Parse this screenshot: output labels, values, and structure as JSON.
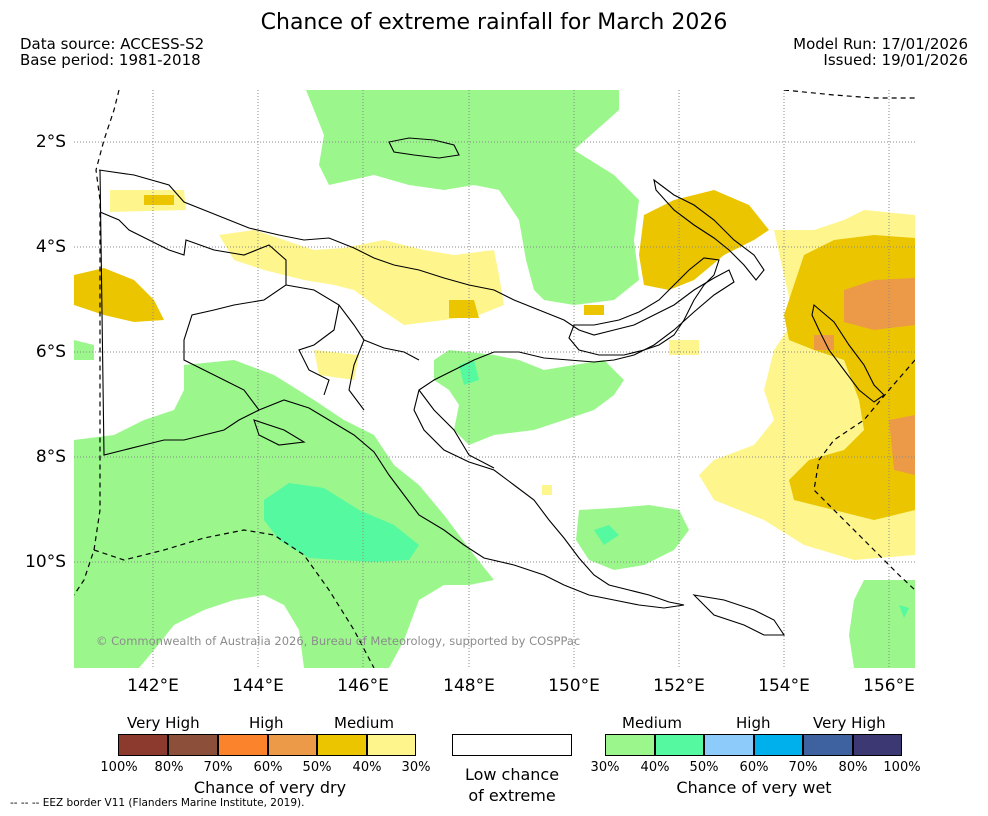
{
  "header": {
    "title": "Chance of extreme rainfall for March 2026",
    "data_source": "Data source: ACCESS-S2",
    "base_period": "Base period: 1981-2018",
    "model_run": "Model Run: 17/01/2026",
    "issued": "Issued: 19/01/2026"
  },
  "map": {
    "lat_labels": [
      "2°S",
      "4°S",
      "6°S",
      "8°S",
      "10°S"
    ],
    "lon_labels": [
      "142°E",
      "144°E",
      "146°E",
      "148°E",
      "150°E",
      "152°E",
      "154°E",
      "156°E"
    ],
    "copyright": "© Commonwealth of Australia 2026, Bureau of Meteorology, supported by COSPPac"
  },
  "legend": {
    "dry": {
      "headers": [
        "Very High",
        "High",
        "Medium"
      ],
      "colors": [
        "#8c3a2e",
        "#8b4f3a",
        "#fb832b",
        "#ec9a48",
        "#ebc500",
        "#fef68c"
      ],
      "ticks": [
        "100%",
        "80%",
        "70%",
        "60%",
        "50%",
        "40%",
        "30%"
      ],
      "label": "Chance of very dry"
    },
    "low": {
      "color": "#ffffff",
      "label_line1": "Low chance",
      "label_line2": "of extreme"
    },
    "wet": {
      "headers": [
        "Medium",
        "High",
        "Very High"
      ],
      "colors": [
        "#9bf78c",
        "#55f99f",
        "#8ccbfa",
        "#00b0ec",
        "#3e62a0",
        "#3c3874"
      ],
      "ticks": [
        "30%",
        "40%",
        "50%",
        "60%",
        "70%",
        "80%",
        "100%"
      ],
      "label": "Chance of very wet"
    },
    "eez_note": "--  --  -- EEZ border V11 (Flanders Marine Institute, 2019)."
  }
}
